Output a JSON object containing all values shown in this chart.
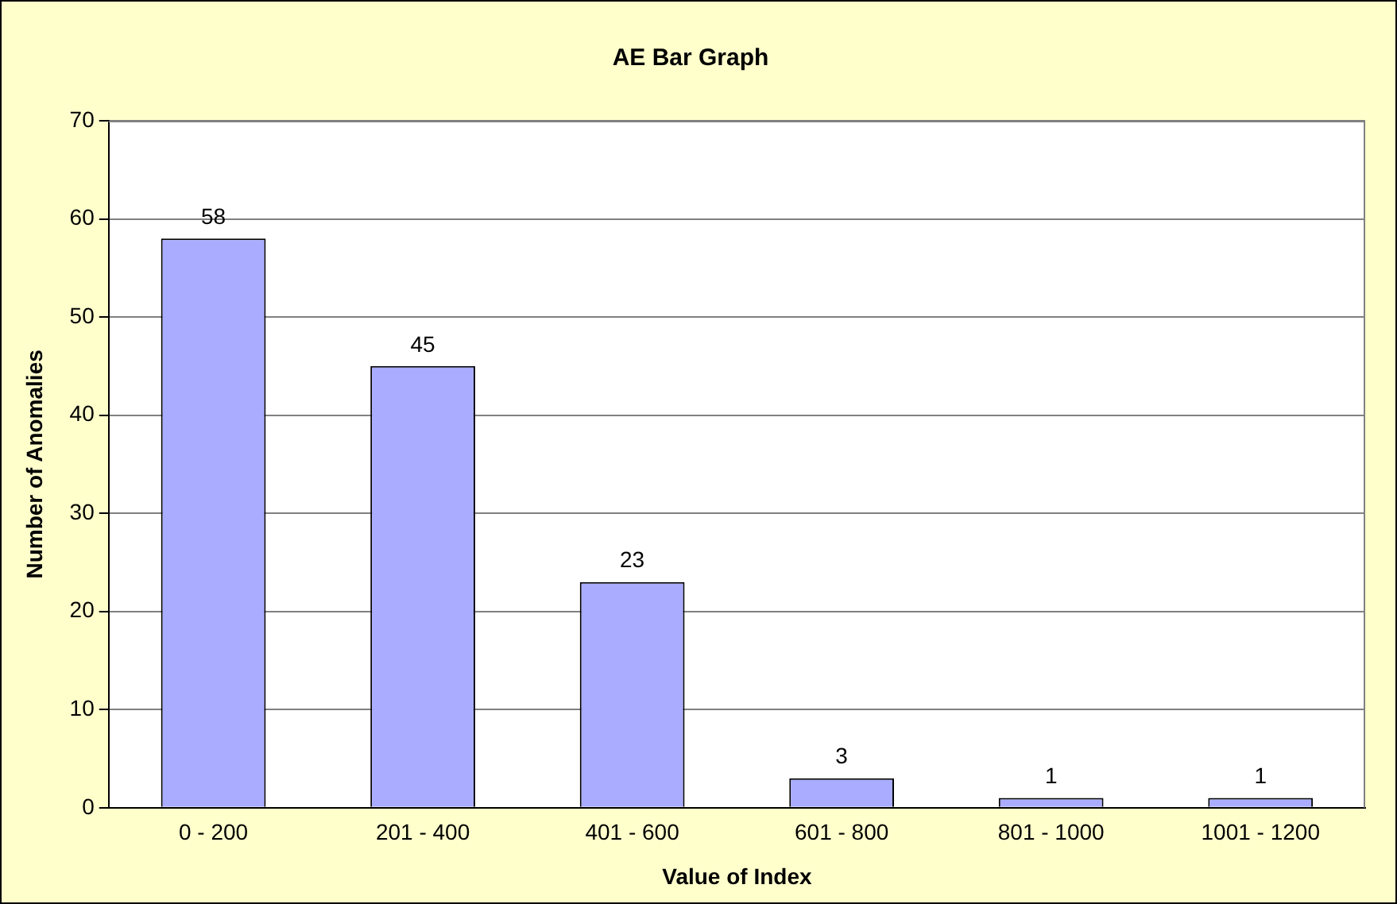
{
  "chart_data": {
    "type": "bar",
    "title": "AE Bar Graph",
    "xlabel": "Value of Index",
    "ylabel": "Number of Anomalies",
    "categories": [
      "0 - 200",
      "201 - 400",
      "401 - 600",
      "601 - 800",
      "801 - 1000",
      "1001 - 1200"
    ],
    "values": [
      58,
      45,
      23,
      3,
      1,
      1
    ],
    "color": "#a9acff",
    "ylim": [
      0,
      70
    ],
    "yticks": [
      0,
      10,
      20,
      30,
      40,
      50,
      60,
      70
    ],
    "grid": "y",
    "data_labels": true,
    "legend": false
  }
}
